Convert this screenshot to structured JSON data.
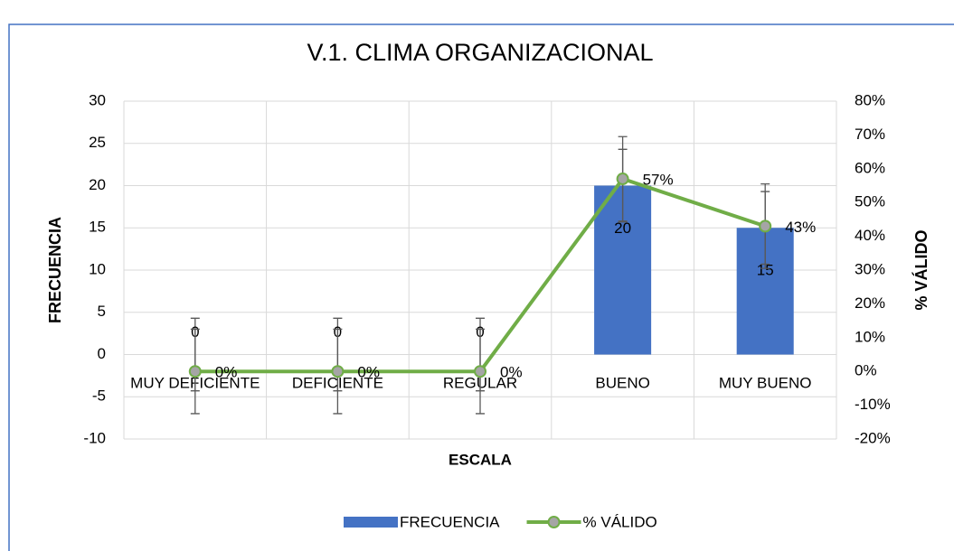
{
  "chart_data": {
    "type": "bar-line",
    "title": "V.1. CLIMA ORGANIZACIONAL",
    "x_label": "ESCALA",
    "y_label": "FRECUENCIA",
    "y2_label": "% VÁLIDO",
    "categories": [
      "MUY DEFICIENTE",
      "DEFICIENTE",
      "REGULAR",
      "BUENO",
      "MUY BUENO"
    ],
    "series": [
      {
        "name": "FRECUENCIA",
        "type": "bar",
        "color": "#4472c4",
        "values": [
          0,
          0,
          0,
          20,
          15
        ],
        "errors": [
          4.3,
          4.3,
          4.3,
          4.3,
          4.3
        ]
      },
      {
        "name": "% VÁLIDO",
        "type": "line",
        "axis": "y2",
        "color": "#70ad47",
        "values": [
          0,
          0,
          0,
          57,
          43
        ],
        "value_labels": [
          "0%",
          "0%",
          "0%",
          "57%",
          "43%"
        ],
        "errors": [
          12.5,
          12.5,
          12.5,
          12.5,
          12.5
        ]
      }
    ],
    "ylim": [
      -10,
      30
    ],
    "yticks": [
      -10,
      -5,
      0,
      5,
      10,
      15,
      20,
      25,
      30
    ],
    "y2lim": [
      -20,
      80
    ],
    "y2ticks": [
      {
        "value": -20,
        "label": "-20%"
      },
      {
        "value": -10,
        "label": "-10%"
      },
      {
        "value": 0,
        "label": "0%"
      },
      {
        "value": 10,
        "label": "10%"
      },
      {
        "value": 20,
        "label": "20%"
      },
      {
        "value": 30,
        "label": "30%"
      },
      {
        "value": 40,
        "label": "40%"
      },
      {
        "value": 50,
        "label": "50%"
      },
      {
        "value": 60,
        "label": "60%"
      },
      {
        "value": 70,
        "label": "70%"
      },
      {
        "value": 80,
        "label": "80%"
      }
    ],
    "grid": true,
    "legend": "bottom"
  }
}
